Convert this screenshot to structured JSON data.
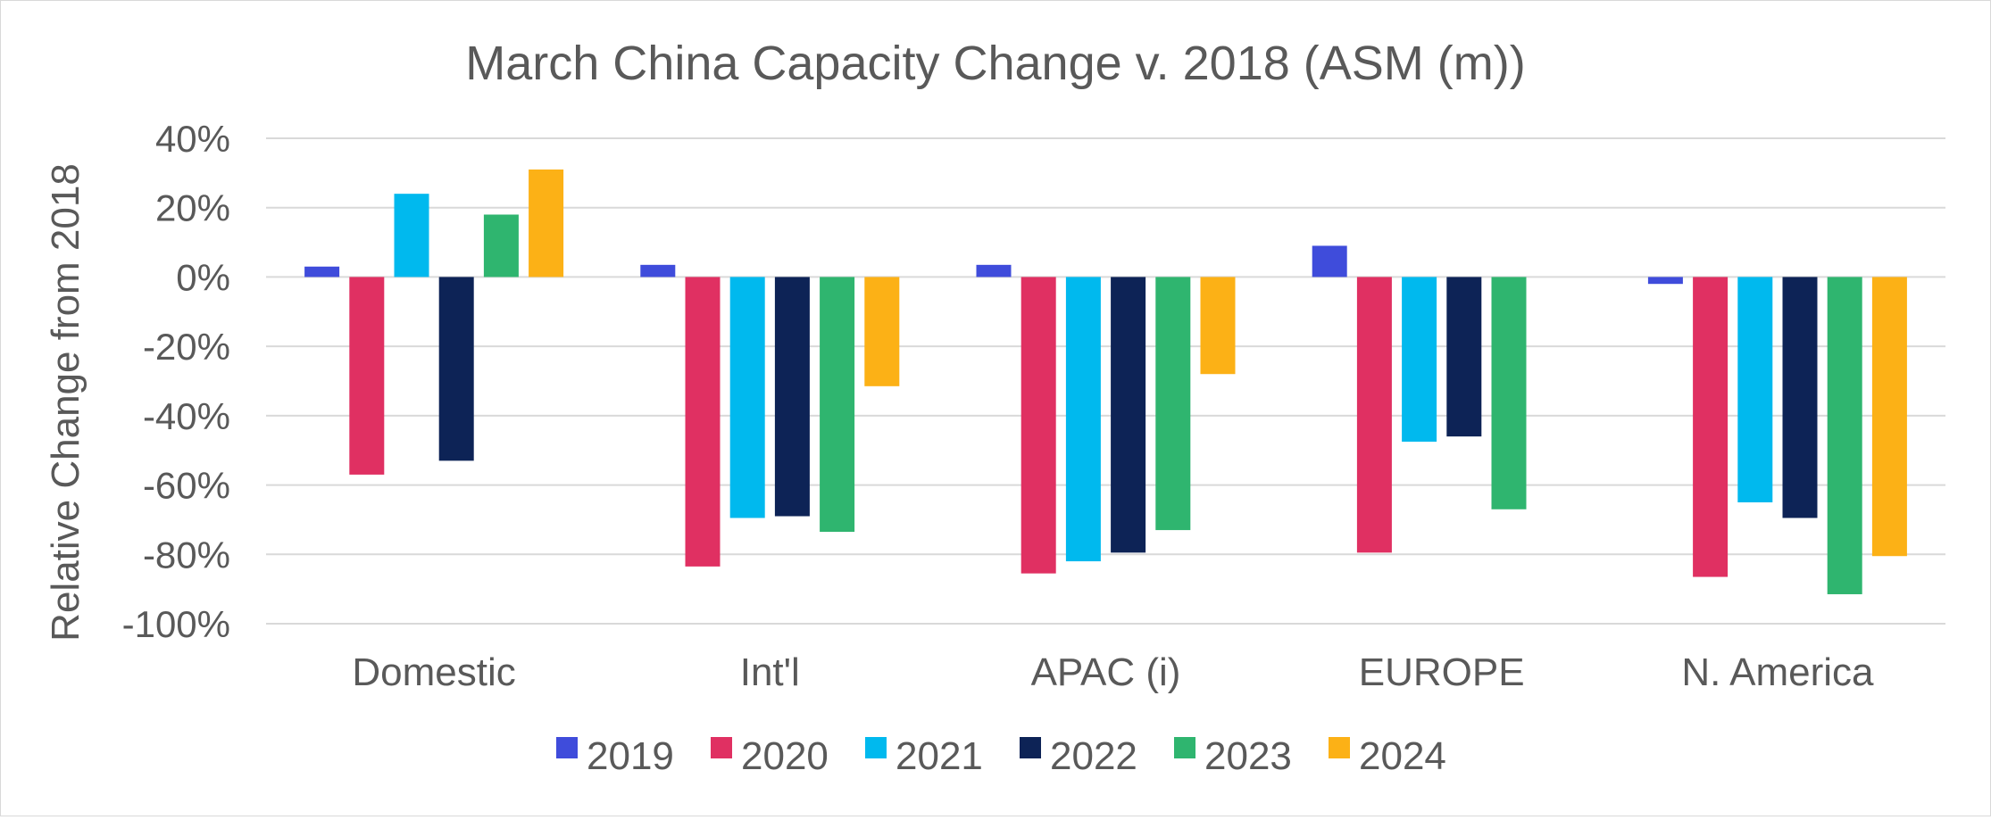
{
  "chart_data": {
    "type": "bar",
    "title": "March China Capacity Change v. 2018 (ASM (m))",
    "xlabel": "",
    "ylabel": "Relative Change from 2018",
    "ylim": [
      -1.0,
      0.4
    ],
    "yticks": [
      0.4,
      0.2,
      0.0,
      -0.2,
      -0.4,
      -0.6,
      -0.8,
      -1.0
    ],
    "ytick_labels": [
      "40%",
      "20%",
      "0%",
      "-20%",
      "-40%",
      "-60%",
      "-80%",
      "-100%"
    ],
    "grid": true,
    "legend_position": "bottom",
    "categories": [
      "Domestic",
      "Int'l",
      "APAC (i)",
      "EUROPE",
      "N. America"
    ],
    "series": [
      {
        "name": "2019",
        "color": "#3F4CDB",
        "values": [
          0.03,
          0.035,
          0.035,
          0.09,
          -0.02
        ]
      },
      {
        "name": "2020",
        "color": "#E03062",
        "values": [
          -0.57,
          -0.835,
          -0.855,
          -0.795,
          -0.865
        ]
      },
      {
        "name": "2021",
        "color": "#00B9EE",
        "values": [
          0.24,
          -0.695,
          -0.82,
          -0.475,
          -0.65
        ]
      },
      {
        "name": "2022",
        "color": "#0D2356",
        "values": [
          -0.53,
          -0.69,
          -0.795,
          -0.46,
          -0.695
        ]
      },
      {
        "name": "2023",
        "color": "#2FB56F",
        "values": [
          0.18,
          -0.735,
          -0.73,
          -0.67,
          -0.915
        ]
      },
      {
        "name": "2024",
        "color": "#FCB116",
        "values": [
          0.31,
          -0.315,
          -0.28,
          null,
          -0.805
        ]
      }
    ]
  }
}
